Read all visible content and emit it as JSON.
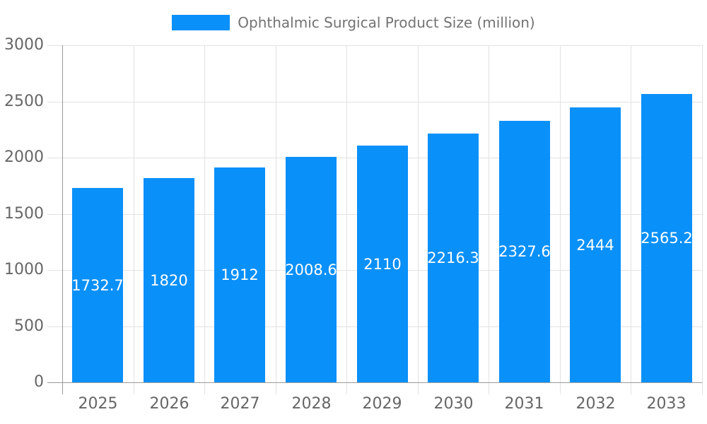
{
  "legend": {
    "label": "Ophthalmic Surgical Product Size (million)"
  },
  "chart_data": {
    "type": "bar",
    "title": "",
    "xlabel": "",
    "ylabel": "",
    "categories": [
      "2025",
      "2026",
      "2027",
      "2028",
      "2029",
      "2030",
      "2031",
      "2032",
      "2033"
    ],
    "series": [
      {
        "name": "Ophthalmic Surgical Product Size (million)",
        "values": [
          1732.7,
          1820,
          1912,
          2008.6,
          2110,
          2216.3,
          2327.6,
          2444,
          2565.2
        ],
        "value_labels": [
          "1732.7",
          "1820",
          "1912",
          "2008.6",
          "2110",
          "2216.3",
          "2327.6",
          "2444",
          "2565.2"
        ],
        "color": "#0a90f9"
      }
    ],
    "ylim": [
      0,
      3000
    ],
    "yticks": [
      0,
      500,
      1000,
      1500,
      2000,
      2500,
      3000
    ],
    "grid": true,
    "legend_position": "top-center",
    "value_label_color": "#ffffff",
    "grid_color": "#e2e2e2",
    "axis_color": "#9a9a9a",
    "tick_label_color": "#666666",
    "legend_text_color": "#737373"
  }
}
